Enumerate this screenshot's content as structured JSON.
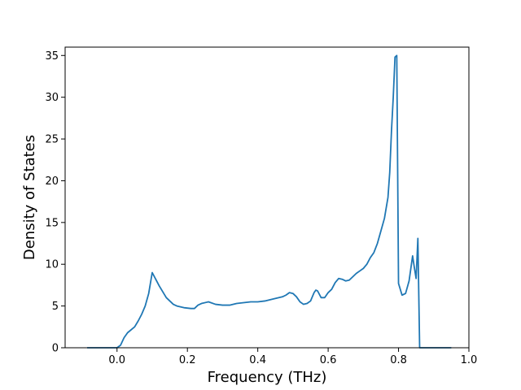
{
  "chart_data": {
    "type": "line",
    "title": "",
    "xlabel": "Frequency (THz)",
    "ylabel": "Density of States",
    "xlim": [
      -0.1475,
      1.0
    ],
    "ylim": [
      0,
      36
    ],
    "xticks": [
      0.0,
      0.2,
      0.4,
      0.6,
      0.8,
      1.0
    ],
    "xtick_labels": [
      "0.0",
      "0.2",
      "0.4",
      "0.6",
      "0.8",
      "1.0"
    ],
    "yticks": [
      0,
      5,
      10,
      15,
      20,
      25,
      30,
      35
    ],
    "ytick_labels": [
      "0",
      "5",
      "10",
      "15",
      "20",
      "25",
      "30",
      "35"
    ],
    "grid": false,
    "line_color": "#1f77b4",
    "series": [
      {
        "x": [
          -0.085,
          -0.05,
          -0.02,
          0.0,
          0.01,
          0.02,
          0.03,
          0.05,
          0.06,
          0.07,
          0.08,
          0.09,
          0.1,
          0.11,
          0.12,
          0.14,
          0.16,
          0.17,
          0.19,
          0.21,
          0.22,
          0.23,
          0.24,
          0.26,
          0.28,
          0.3,
          0.32,
          0.34,
          0.36,
          0.38,
          0.4,
          0.42,
          0.44,
          0.47,
          0.48,
          0.49,
          0.5,
          0.51,
          0.52,
          0.53,
          0.54,
          0.55,
          0.56,
          0.565,
          0.57,
          0.58,
          0.59,
          0.6,
          0.61,
          0.62,
          0.63,
          0.64,
          0.65,
          0.66,
          0.67,
          0.68,
          0.69,
          0.7,
          0.71,
          0.72,
          0.73,
          0.74,
          0.75,
          0.76,
          0.77,
          0.775,
          0.78,
          0.785,
          0.79,
          0.795,
          0.8,
          0.81,
          0.82,
          0.83,
          0.84,
          0.845,
          0.85,
          0.855,
          0.86,
          0.865,
          0.88,
          0.9,
          0.95
        ],
        "y": [
          0,
          0,
          0,
          0,
          0.3,
          1.2,
          1.8,
          2.5,
          3.2,
          4.0,
          5.0,
          6.5,
          9.0,
          8.2,
          7.4,
          6.0,
          5.2,
          5.0,
          4.8,
          4.7,
          4.7,
          5.1,
          5.3,
          5.5,
          5.2,
          5.1,
          5.1,
          5.3,
          5.4,
          5.5,
          5.5,
          5.6,
          5.8,
          6.1,
          6.3,
          6.6,
          6.5,
          6.1,
          5.5,
          5.2,
          5.3,
          5.6,
          6.6,
          6.9,
          6.8,
          6.0,
          6.0,
          6.6,
          7.0,
          7.8,
          8.3,
          8.2,
          8.0,
          8.1,
          8.5,
          8.9,
          9.2,
          9.5,
          10.0,
          10.8,
          11.4,
          12.5,
          14.0,
          15.5,
          18.0,
          21.0,
          26.0,
          30.0,
          34.8,
          35.0,
          7.7,
          6.3,
          6.5,
          8.0,
          11.0,
          9.6,
          8.3,
          13.1,
          0,
          0,
          0,
          0,
          0
        ]
      }
    ]
  }
}
